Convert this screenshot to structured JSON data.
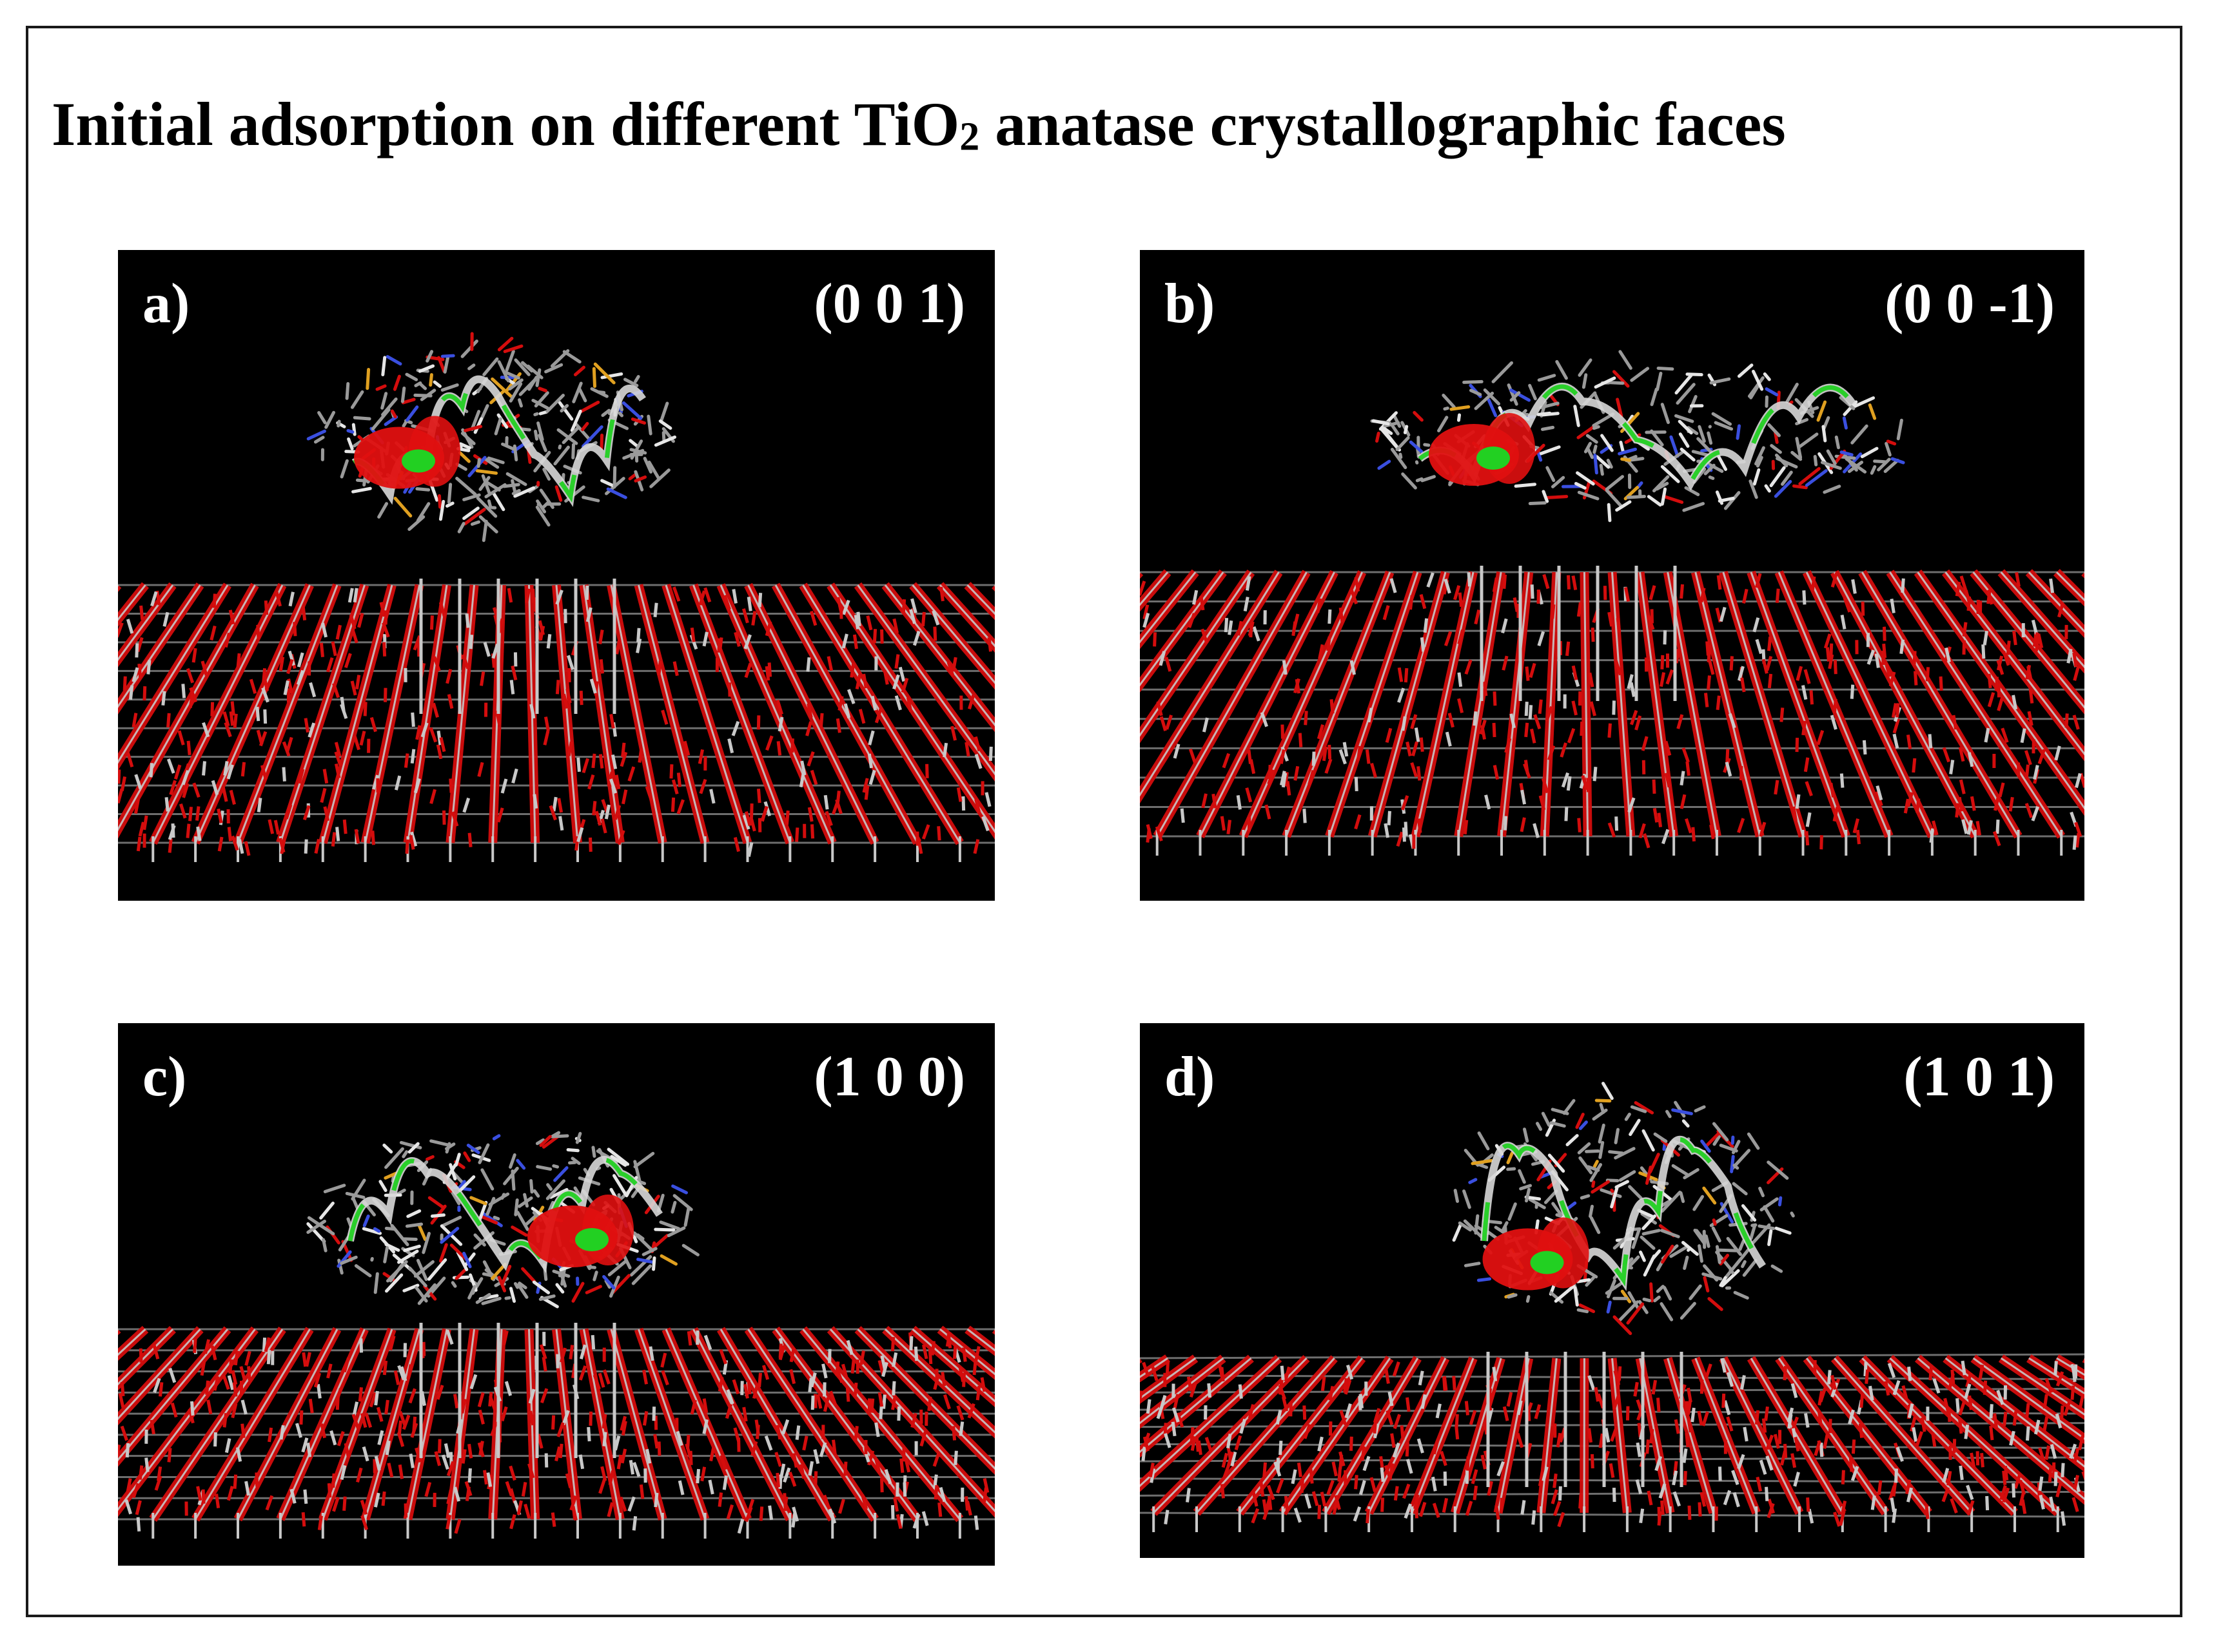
{
  "figure": {
    "title_prefix": "Initial adsorption on different TiO",
    "title_subscript": "2",
    "title_suffix": " anatase crystallographic faces"
  },
  "colors": {
    "background": "#000000",
    "oxygen": "#d40d0d",
    "titanium": "#c8c8c8",
    "helix": "#e01010",
    "coil": "#22d022",
    "nitrogen": "#3a4fe0",
    "sulfur": "#e0a020"
  },
  "panels": [
    {
      "label": "a)",
      "face": "(0 0 1)"
    },
    {
      "label": "b)",
      "face": "(0 0 -1)"
    },
    {
      "label": "c)",
      "face": "(1 0 0)"
    },
    {
      "label": "d)",
      "face": "(1 0 1)"
    }
  ]
}
